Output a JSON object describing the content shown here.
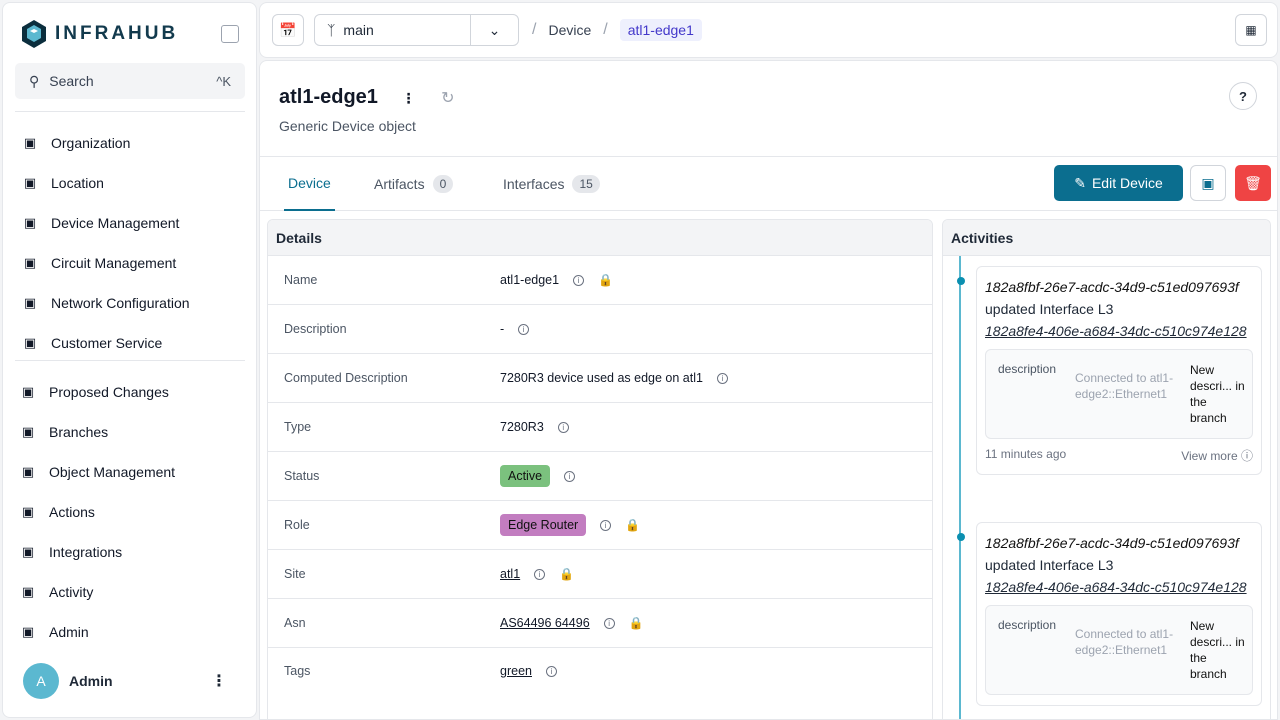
{
  "app": {
    "logo": "INFRAHUB",
    "search_label": "Search",
    "search_shortcut": "^K"
  },
  "sidebar": {
    "items": [
      {
        "label": "Organization",
        "icon": "building-icon"
      },
      {
        "label": "Location",
        "icon": "pin-icon"
      },
      {
        "label": "Device Management",
        "icon": "server-icon"
      },
      {
        "label": "Circuit Management",
        "icon": "circuit-icon"
      },
      {
        "label": "Network Configuration",
        "icon": "network-icon"
      },
      {
        "label": "Customer Service",
        "icon": "service-icon"
      }
    ],
    "items2": [
      {
        "label": "Proposed Changes",
        "icon": "proposed-changes-icon"
      },
      {
        "label": "Branches",
        "icon": "layers-icon"
      },
      {
        "label": "Object Management",
        "icon": "cube-icon"
      },
      {
        "label": "Actions",
        "icon": "rocket-icon"
      },
      {
        "label": "Integrations",
        "icon": "plug-icon"
      },
      {
        "label": "Activity",
        "icon": "chart-icon"
      },
      {
        "label": "Admin",
        "icon": "gear-icon"
      }
    ],
    "user": {
      "initial": "A",
      "name": "Admin"
    }
  },
  "topbar": {
    "branch": "main",
    "breadcrumb": [
      "Device",
      "atl1-edge1"
    ]
  },
  "object": {
    "title": "atl1-edge1",
    "subtitle": "Generic Device object"
  },
  "tabs": [
    {
      "label": "Device"
    },
    {
      "label": "Artifacts",
      "count": "0"
    },
    {
      "label": "Interfaces",
      "count": "15"
    }
  ],
  "edit_label": "Edit Device",
  "details": {
    "title": "Details",
    "rows": [
      {
        "label": "Name",
        "value": "atl1-edge1"
      },
      {
        "label": "Description",
        "value": "-"
      },
      {
        "label": "Computed Description",
        "value": "7280R3 device used as edge on atl1"
      },
      {
        "label": "Type",
        "value": "7280R3"
      },
      {
        "label": "Status",
        "value": "Active",
        "color": "#7bc17e"
      },
      {
        "label": "Role",
        "value": "Edge Router",
        "color": "#c27dc0"
      },
      {
        "label": "Site",
        "value": "atl1"
      },
      {
        "label": "Asn",
        "value": "AS64496 64496"
      },
      {
        "label": "Tags",
        "value": "green"
      }
    ]
  },
  "activities": {
    "title": "Activities",
    "items": [
      {
        "id": "182a8fbf-26e7-acdc-34d9-c51ed097693f",
        "action": "updated Interface L3",
        "target": "182a8fe4-406e-a684-34dc-c510c974e128",
        "field": "description",
        "old": "Connected to atl1-edge2::Ethernet1",
        "new": "New descri... in the branch",
        "time": "11 minutes ago",
        "more": "View more"
      },
      {
        "id": "182a8fbf-26e7-acdc-34d9-c51ed097693f",
        "action": "updated Interface L3",
        "target": "182a8fe4-406e-a684-34dc-c510c974e128",
        "field": "description",
        "old": "Connected to atl1-edge2::Ethernet1",
        "new": "New descri... in the branch"
      }
    ]
  }
}
